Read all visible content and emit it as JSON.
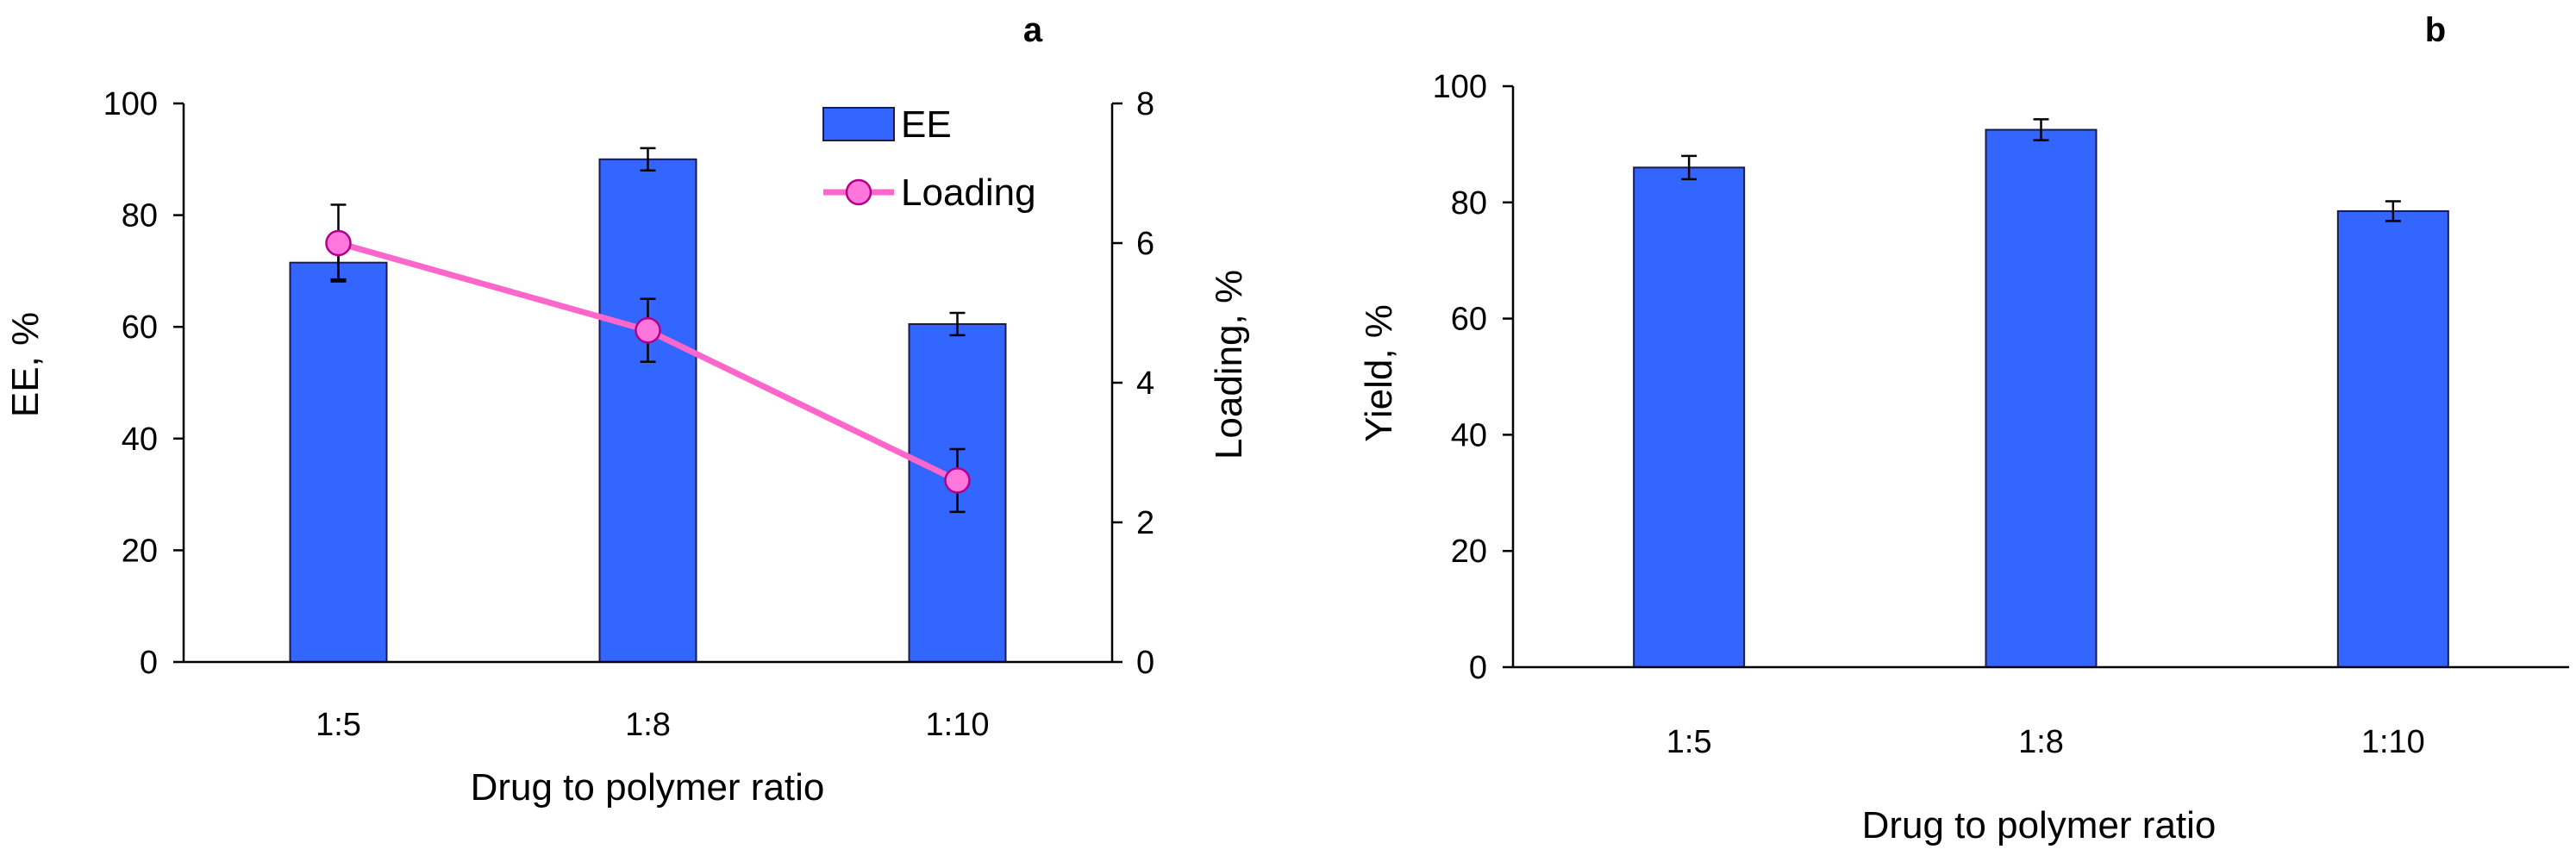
{
  "colors": {
    "bar": "#3366ff",
    "bar_edge": "#1a1a4d",
    "line": "#ff66cc",
    "marker": "#ff77dd",
    "marker_edge": "#b0008a"
  },
  "chart_data": [
    {
      "panel": "a",
      "type": "bar",
      "title": "",
      "xlabel": "Drug to polymer ratio",
      "ylabel": "EE, %",
      "y2label": "Loading, %",
      "categories": [
        "1:5",
        "1:8",
        "1:10"
      ],
      "ylim": [
        0,
        100
      ],
      "y2lim": [
        0,
        8
      ],
      "yticks": [
        "0",
        "20",
        "40",
        "60",
        "80",
        "100"
      ],
      "y2ticks": [
        "0",
        "2",
        "4",
        "6",
        "8"
      ],
      "grid": false,
      "legend_position": "top-right",
      "series": [
        {
          "name": "EE",
          "type": "bar",
          "axis": "left",
          "values": [
            71.5,
            90,
            60.5
          ],
          "errors": [
            3,
            2,
            2
          ]
        },
        {
          "name": "Loading",
          "type": "line",
          "axis": "right",
          "values": [
            6.0,
            4.75,
            2.6
          ],
          "errors": [
            0.55,
            0.45,
            0.45
          ]
        }
      ]
    },
    {
      "panel": "b",
      "type": "bar",
      "title": "",
      "xlabel": "Drug to polymer ratio",
      "ylabel": "Yield, %",
      "categories": [
        "1:5",
        "1:8",
        "1:10"
      ],
      "ylim": [
        0,
        100
      ],
      "yticks": [
        "0",
        "20",
        "40",
        "60",
        "80",
        "100"
      ],
      "grid": false,
      "series": [
        {
          "name": "Yield",
          "type": "bar",
          "axis": "left",
          "values": [
            86,
            92.5,
            78.5
          ],
          "errors": [
            2,
            1.8,
            1.7
          ]
        }
      ]
    }
  ]
}
